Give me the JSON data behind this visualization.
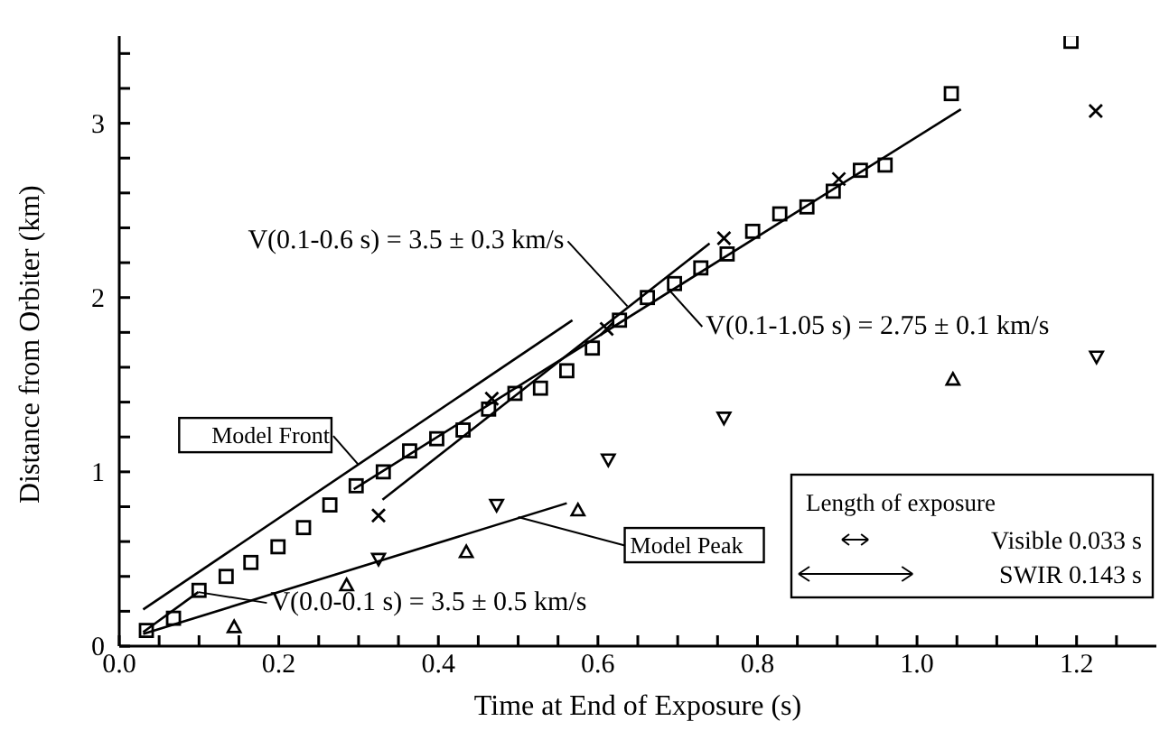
{
  "chart_data": {
    "type": "scatter",
    "xlabel": "Time at End of Exposure (s)",
    "ylabel": "Distance from Orbiter (km)",
    "xlim": [
      0,
      1.3
    ],
    "ylim": [
      0,
      3.5
    ],
    "xticks": [
      {
        "value": 0,
        "label": "0.0"
      },
      {
        "value": 0.05,
        "label": null
      },
      {
        "value": 0.1,
        "label": null
      },
      {
        "value": 0.15,
        "label": null
      },
      {
        "value": 0.2,
        "label": "0.2"
      },
      {
        "value": 0.25,
        "label": null
      },
      {
        "value": 0.3,
        "label": null
      },
      {
        "value": 0.35,
        "label": null
      },
      {
        "value": 0.4,
        "label": "0.4"
      },
      {
        "value": 0.45,
        "label": null
      },
      {
        "value": 0.5,
        "label": null
      },
      {
        "value": 0.55,
        "label": null
      },
      {
        "value": 0.6,
        "label": "0.6"
      },
      {
        "value": 0.65,
        "label": null
      },
      {
        "value": 0.7,
        "label": null
      },
      {
        "value": 0.75,
        "label": null
      },
      {
        "value": 0.8,
        "label": "0.8"
      },
      {
        "value": 0.85,
        "label": null
      },
      {
        "value": 0.9,
        "label": null
      },
      {
        "value": 0.95,
        "label": null
      },
      {
        "value": 1.0,
        "label": "1.0"
      },
      {
        "value": 1.05,
        "label": null
      },
      {
        "value": 1.1,
        "label": null
      },
      {
        "value": 1.15,
        "label": null
      },
      {
        "value": 1.2,
        "label": "1.2"
      },
      {
        "value": 1.25,
        "label": null
      }
    ],
    "yticks": [
      0,
      {
        "value": 0.2,
        "label": null
      },
      {
        "value": 0.4,
        "label": null
      },
      {
        "value": 0.6,
        "label": null
      },
      {
        "value": 0.8,
        "label": null
      },
      1,
      {
        "value": 1.2,
        "label": null
      },
      {
        "value": 1.4,
        "label": null
      },
      {
        "value": 1.6,
        "label": null
      },
      {
        "value": 1.8,
        "label": null
      },
      2,
      {
        "value": 2.2,
        "label": null
      },
      {
        "value": 2.4,
        "label": null
      },
      {
        "value": 2.6,
        "label": null
      },
      {
        "value": 2.8,
        "label": null
      },
      3,
      {
        "value": 3.2,
        "label": null
      },
      {
        "value": 3.4,
        "label": null
      }
    ],
    "grid": false,
    "series": [
      {
        "marker": "square",
        "color": "#000000",
        "x": [
          0.034,
          0.068,
          0.1,
          0.134,
          0.165,
          0.199,
          0.231,
          0.264,
          0.297,
          0.331,
          0.364,
          0.398,
          0.431,
          0.463,
          0.496,
          0.528,
          0.561,
          0.593,
          0.627,
          0.662,
          0.696,
          0.729,
          0.762,
          0.794,
          0.828,
          0.862,
          0.895,
          0.929,
          0.96,
          1.043,
          1.193
        ],
        "values": [
          0.09,
          0.16,
          0.32,
          0.4,
          0.48,
          0.57,
          0.68,
          0.81,
          0.92,
          1.0,
          1.12,
          1.19,
          1.24,
          1.36,
          1.45,
          1.48,
          1.58,
          1.71,
          1.87,
          2.0,
          2.08,
          2.17,
          2.25,
          2.38,
          2.48,
          2.52,
          2.61,
          2.73,
          2.76,
          3.17,
          3.47
        ]
      },
      {
        "marker": "cross",
        "color": "#000000",
        "x": [
          0.325,
          0.467,
          0.611,
          0.758,
          0.902,
          1.224
        ],
        "values": [
          0.75,
          1.42,
          1.82,
          2.34,
          2.68,
          3.07
        ]
      },
      {
        "marker": "triangle",
        "color": "#000000",
        "x": [
          0.144,
          0.285,
          0.435,
          0.575,
          1.045
        ],
        "values": [
          0.11,
          0.35,
          0.54,
          0.78,
          1.53
        ]
      },
      {
        "marker": "triangle-down",
        "color": "#000000",
        "x": [
          0.325,
          0.473,
          0.613,
          0.758,
          1.225
        ],
        "values": [
          0.5,
          0.81,
          1.07,
          1.31,
          1.66
        ]
      },
      {
        "type": "line",
        "color": "#000000",
        "x": [
          0.03,
          0.568
        ],
        "values": [
          0.21,
          1.87
        ]
      },
      {
        "type": "line",
        "color": "#000000",
        "x": [
          0.33,
          0.74
        ],
        "values": [
          0.84,
          2.31
        ]
      },
      {
        "type": "line",
        "color": "#000000",
        "x": [
          0.294,
          1.055
        ],
        "values": [
          0.9,
          3.08
        ]
      },
      {
        "type": "line",
        "color": "#000000",
        "x": [
          0.03,
          0.099
        ],
        "values": [
          0.08,
          0.31
        ]
      },
      {
        "type": "line",
        "color": "#000000",
        "x": [
          0.03,
          0.561
        ],
        "values": [
          0.07,
          0.82
        ]
      }
    ],
    "annotations": [
      {
        "text": "V(0.1-0.6 s) = 3.5 ± 0.3 km/s",
        "x": 0.637,
        "y": 1.95
      },
      {
        "text": "V(0.1-1.05 s) = 2.75 ± 0.1 km/s",
        "x": 0.69,
        "y": 2.04
      },
      {
        "text": "Model Front",
        "x": 0.3,
        "y": 1.04
      },
      {
        "text": "Model Peak",
        "x": 0.5,
        "y": 0.74
      },
      {
        "text": "V(0.0-0.1 s) = 3.5 ± 0.5 km/s",
        "x": 0.099,
        "y": 0.31
      },
      "Length of exposure",
      "Visible 0.033 s",
      "SWIR 0.143 s"
    ]
  }
}
